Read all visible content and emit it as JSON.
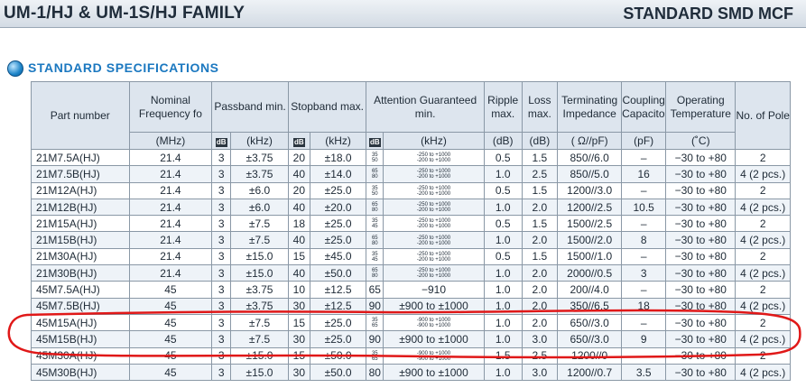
{
  "header": {
    "family": "UM-1/HJ & UM-1S/HJ FAMILY",
    "category": "STANDARD SMD MCF"
  },
  "section": {
    "title": "STANDARD SPECIFICATIONS"
  },
  "colors": {
    "accent": "#1b78c0",
    "header_bg": "#dde5ee",
    "row_alt": "#eef3f8",
    "annotation": "#e01818"
  },
  "table": {
    "headers": {
      "part_number": "Part number",
      "nominal": "Nominal Frequency fo",
      "passband": "Passband min.",
      "stopband": "Stopband max.",
      "attention": "Attention Guaranteed min.",
      "ripple": "Ripple max.",
      "loss": "Loss max.",
      "terminating": "Terminating Impedance",
      "coupling": "Coupling Capacitor",
      "temperature": "Operating Temperature",
      "poles": "No. of Pole"
    },
    "units": {
      "nominal": "(MHz)",
      "db": "dB",
      "khz": "(kHz)",
      "ripple": "(dB)",
      "loss": "(dB)",
      "terminating": "( Ω//pF)",
      "coupling": "(pF)",
      "temperature": "(˚C)"
    },
    "rows": [
      [
        "21M7.5A(HJ)",
        "21.4",
        "3",
        "±3.75",
        "20",
        "±18.0",
        "35/50",
        "-250 to +1000/-200 to +1000",
        "0.5",
        "1.5",
        "850//6.0",
        "–",
        "−30 to +80",
        "2"
      ],
      [
        "21M7.5B(HJ)",
        "21.4",
        "3",
        "±3.75",
        "40",
        "±14.0",
        "65/80",
        "-250 to +1000/-200 to +1000",
        "1.0",
        "2.5",
        "850//5.0",
        "16",
        "−30 to +80",
        "4 (2 pcs.)"
      ],
      [
        "21M12A(HJ)",
        "21.4",
        "3",
        "±6.0",
        "20",
        "±25.0",
        "35/50",
        "-250 to +1000/-200 to +1000",
        "0.5",
        "1.5",
        "1200//3.0",
        "–",
        "−30 to +80",
        "2"
      ],
      [
        "21M12B(HJ)",
        "21.4",
        "3",
        "±6.0",
        "40",
        "±20.0",
        "65/80",
        "-250 to +1000/-200 to +1000",
        "1.0",
        "2.0",
        "1200//2.5",
        "10.5",
        "−30 to +80",
        "4 (2 pcs.)"
      ],
      [
        "21M15A(HJ)",
        "21.4",
        "3",
        "±7.5",
        "18",
        "±25.0",
        "35/45",
        "-250 to +1000/-200 to +1000",
        "0.5",
        "1.5",
        "1500//2.5",
        "–",
        "−30 to +80",
        "2"
      ],
      [
        "21M15B(HJ)",
        "21.4",
        "3",
        "±7.5",
        "40",
        "±25.0",
        "65/80",
        "-250 to +1000/-200 to +1000",
        "1.0",
        "2.0",
        "1500//2.0",
        "8",
        "−30 to +80",
        "4 (2 pcs.)"
      ],
      [
        "21M30A(HJ)",
        "21.4",
        "3",
        "±15.0",
        "15",
        "±45.0",
        "35/45",
        "-250 to +1000/-200 to +1000",
        "0.5",
        "1.5",
        "1500//1.0",
        "–",
        "−30 to +80",
        "2"
      ],
      [
        "21M30B(HJ)",
        "21.4",
        "3",
        "±15.0",
        "40",
        "±50.0",
        "65/80",
        "-250 to +1000/-200 to +1000",
        "1.0",
        "2.0",
        "2000//0.5",
        "3",
        "−30 to +80",
        "4 (2 pcs.)"
      ],
      [
        "45M7.5A(HJ)",
        "45",
        "3",
        "±3.75",
        "10",
        "±12.5",
        "65",
        "−910",
        "1.0",
        "2.0",
        "200//4.0",
        "–",
        "−30 to +80",
        "2"
      ],
      [
        "45M7.5B(HJ)",
        "45",
        "3",
        "±3.75",
        "30",
        "±12.5",
        "90",
        "±900 to ±1000",
        "1.0",
        "2.0",
        "350//6.5",
        "18",
        "−30 to +80",
        "4 (2 pcs.)"
      ],
      [
        "45M15A(HJ)",
        "45",
        "3",
        "±7.5",
        "15",
        "±25.0",
        "35/65",
        "-900 to +1000/-900 to +1000",
        "1.0",
        "2.0",
        "650//3.0",
        "–",
        "−30 to +80",
        "2"
      ],
      [
        "45M15B(HJ)",
        "45",
        "3",
        "±7.5",
        "30",
        "±25.0",
        "90",
        "±900 to ±1000",
        "1.0",
        "3.0",
        "650//3.0",
        "9",
        "−30 to +80",
        "4 (2 pcs.)"
      ],
      [
        "45M30A(HJ)",
        "45",
        "3",
        "±15.0",
        "15",
        "±50.0",
        "35/65",
        "-900 to +1000/-900 to +1000",
        "1.5",
        "2.5",
        "1200//0",
        "–",
        "−30 to +80",
        "2"
      ],
      [
        "45M30B(HJ)",
        "45",
        "3",
        "±15.0",
        "30",
        "±50.0",
        "80",
        "±900 to ±1000",
        "1.0",
        "3.0",
        "1200//0.7",
        "3.5",
        "−30 to +80",
        "4 (2 pcs.)"
      ]
    ]
  }
}
